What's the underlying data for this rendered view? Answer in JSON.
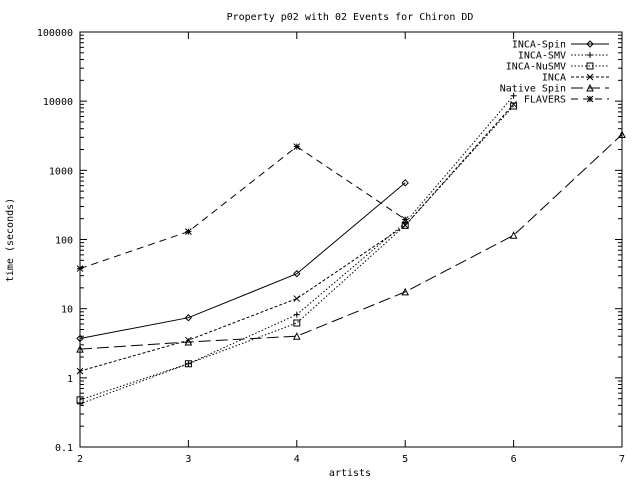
{
  "chart_data": {
    "type": "line",
    "title": "Property p02 with 02 Events for Chiron DD",
    "xlabel": "artists",
    "ylabel": "time (seconds)",
    "xlim": [
      2,
      7
    ],
    "ylim": [
      0.1,
      100000
    ],
    "yscale": "log",
    "x_ticks": [
      "2",
      "3",
      "4",
      "5",
      "6",
      "7"
    ],
    "y_ticks": [
      "0.1",
      "1",
      "10",
      "100",
      "1000",
      "10000",
      "100000"
    ],
    "grid": false,
    "legend_position": "top-right",
    "series": [
      {
        "name": "INCA-Spin",
        "dash": "solid",
        "marker": "diamond",
        "points": [
          [
            2,
            3.7
          ],
          [
            3,
            7.4
          ],
          [
            4,
            32
          ],
          [
            5,
            660
          ]
        ]
      },
      {
        "name": "INCA-SMV",
        "dash": "dotted",
        "marker": "plus",
        "points": [
          [
            2,
            0.42
          ],
          [
            3,
            1.6
          ],
          [
            4,
            8.2
          ],
          [
            5,
            175
          ],
          [
            6,
            12000
          ]
        ]
      },
      {
        "name": "INCA-NuSMV",
        "dash": "dotted",
        "marker": "square",
        "points": [
          [
            2,
            0.48
          ],
          [
            3,
            1.6
          ],
          [
            4,
            6.2
          ],
          [
            5,
            160
          ],
          [
            6,
            8500
          ]
        ]
      },
      {
        "name": "INCA",
        "dash": "finedash",
        "marker": "x",
        "points": [
          [
            2,
            1.25
          ],
          [
            3,
            3.5
          ],
          [
            4,
            14
          ],
          [
            5,
            160
          ],
          [
            6,
            9000
          ]
        ]
      },
      {
        "name": "Native Spin",
        "dash": "longdash",
        "marker": "triangle",
        "points": [
          [
            2,
            2.6
          ],
          [
            3,
            3.3
          ],
          [
            4,
            4.0
          ],
          [
            5,
            17.5
          ],
          [
            6,
            115
          ],
          [
            7,
            3300
          ]
        ]
      },
      {
        "name": "FLAVERS",
        "dash": "dashed",
        "marker": "star",
        "points": [
          [
            2,
            38
          ],
          [
            3,
            130
          ],
          [
            4,
            2200
          ],
          [
            5,
            195
          ]
        ]
      }
    ]
  }
}
